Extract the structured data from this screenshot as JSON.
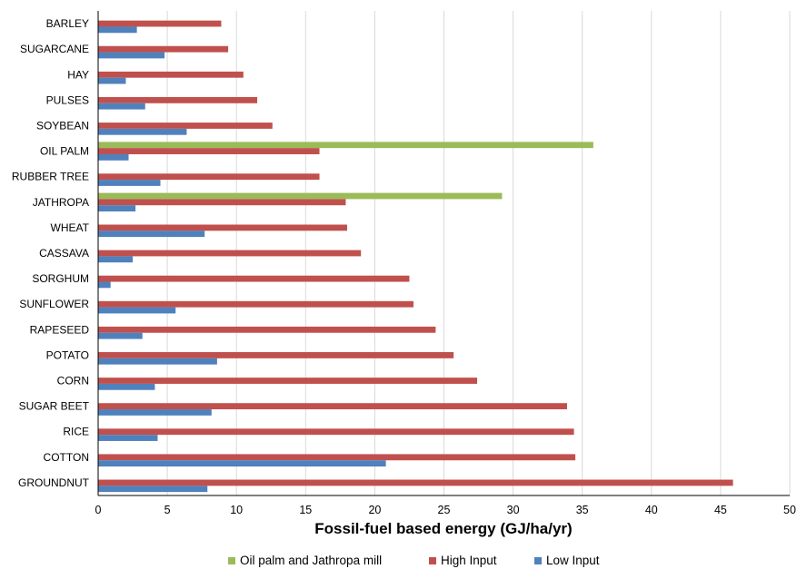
{
  "chart_data": {
    "type": "bar",
    "orientation": "horizontal",
    "categories": [
      "BARLEY",
      "SUGARCANE",
      "HAY",
      "PULSES",
      "SOYBEAN",
      "OIL PALM",
      "RUBBER TREE",
      "JATHROPA",
      "WHEAT",
      "CASSAVA",
      "SORGHUM",
      "SUNFLOWER",
      "RAPESEED",
      "POTATO",
      "CORN",
      "SUGAR BEET",
      "RICE",
      "COTTON",
      "GROUNDNUT"
    ],
    "series": [
      {
        "name": "Oil palm and Jathropa mill",
        "color": "#9bbb59",
        "values": [
          null,
          null,
          null,
          null,
          null,
          35.8,
          null,
          29.2,
          null,
          null,
          null,
          null,
          null,
          null,
          null,
          null,
          null,
          null,
          null
        ]
      },
      {
        "name": "High Input",
        "color": "#c0504d",
        "values": [
          8.9,
          9.4,
          10.5,
          11.5,
          12.6,
          16.0,
          16.0,
          17.9,
          18.0,
          19.0,
          22.5,
          22.8,
          24.4,
          25.7,
          27.4,
          33.9,
          34.4,
          34.5,
          45.9
        ]
      },
      {
        "name": "Low Input",
        "color": "#4f81bd",
        "values": [
          2.8,
          4.8,
          2.0,
          3.4,
          6.4,
          2.2,
          4.5,
          2.7,
          7.7,
          2.5,
          0.9,
          5.6,
          3.2,
          8.6,
          4.1,
          8.2,
          4.3,
          20.8,
          7.9
        ]
      }
    ],
    "xlabel": "Fossil-fuel based energy (GJ/ha/yr)",
    "xlim": [
      0,
      50
    ],
    "xticks": [
      0,
      5,
      10,
      15,
      20,
      25,
      30,
      35,
      40,
      45,
      50
    ],
    "grid": true,
    "legend_position": "bottom"
  }
}
